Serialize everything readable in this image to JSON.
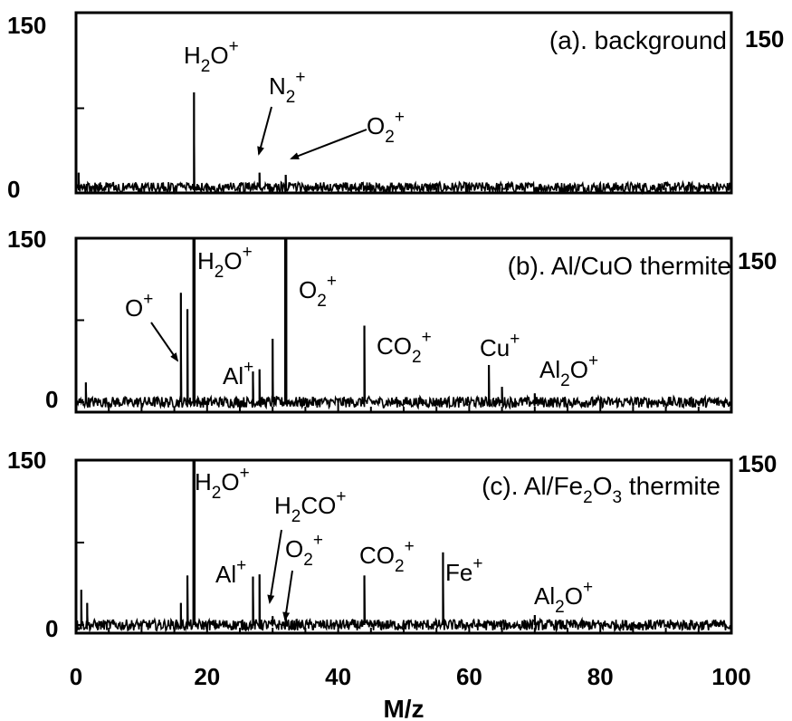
{
  "chart_data": {
    "type": "line",
    "shared_xaxis": {
      "xlabel": "M/z",
      "xlim": [
        0,
        100
      ],
      "tick_values": [
        0,
        20,
        40,
        60,
        80,
        100
      ],
      "tick_labels": [
        "0",
        "20",
        "40",
        "60",
        "80",
        "100"
      ]
    },
    "panels": [
      {
        "title": "(a). background",
        "ylim": [
          0,
          150
        ],
        "y_tick_labels": [
          "0",
          "150"
        ],
        "right_y_tick_label": "150",
        "baseline_noise": 5,
        "peaks": [
          {
            "x": 18,
            "y": 90
          },
          {
            "x": 28,
            "y": 14
          },
          {
            "x": 32,
            "y": 12
          },
          {
            "x": 0.4,
            "y": 14
          }
        ],
        "annotations": [
          {
            "parts": [
              [
                "H",
                "n"
              ],
              [
                "2",
                "sub"
              ],
              [
                "O",
                "n"
              ],
              [
                "+",
                "sup"
              ]
            ],
            "peak_x": 18,
            "arrow": false
          },
          {
            "parts": [
              [
                "N",
                "n"
              ],
              [
                "2",
                "sub"
              ],
              [
                "+",
                "sup"
              ]
            ],
            "peak_x": 28,
            "arrow": true
          },
          {
            "parts": [
              [
                "O",
                "n"
              ],
              [
                "2",
                "sub"
              ],
              [
                "+",
                "sup"
              ]
            ],
            "peak_x": 32,
            "arrow": true
          }
        ]
      },
      {
        "title": "(b). Al/CuO thermite",
        "ylim": [
          0,
          150
        ],
        "y_tick_labels": [
          "0",
          "150"
        ],
        "right_y_tick_label": "150",
        "baseline_noise": 5,
        "peaks": [
          {
            "x": 1.5,
            "y": 18
          },
          {
            "x": 16,
            "y": 100
          },
          {
            "x": 17,
            "y": 85
          },
          {
            "x": 18,
            "y": 150
          },
          {
            "x": 27,
            "y": 28
          },
          {
            "x": 28,
            "y": 30
          },
          {
            "x": 30,
            "y": 58
          },
          {
            "x": 32,
            "y": 150
          },
          {
            "x": 44,
            "y": 70
          },
          {
            "x": 63,
            "y": 34
          },
          {
            "x": 65,
            "y": 14
          },
          {
            "x": 70,
            "y": 8
          }
        ],
        "annotations": [
          {
            "parts": [
              [
                "H",
                "n"
              ],
              [
                "2",
                "sub"
              ],
              [
                "O",
                "n"
              ],
              [
                "+",
                "sup"
              ]
            ],
            "peak_x": 18,
            "arrow": false
          },
          {
            "parts": [
              [
                "O",
                "n"
              ],
              [
                "+",
                "sup"
              ]
            ],
            "peak_x": 16,
            "arrow": true
          },
          {
            "parts": [
              [
                "O",
                "n"
              ],
              [
                "2",
                "sub"
              ],
              [
                "+",
                "sup"
              ]
            ],
            "peak_x": 32,
            "arrow": false
          },
          {
            "parts": [
              [
                "Al",
                "n"
              ],
              [
                "+",
                "sup"
              ]
            ],
            "peak_x": 27,
            "arrow": false
          },
          {
            "parts": [
              [
                "CO",
                "n"
              ],
              [
                "2",
                "sub"
              ],
              [
                "+",
                "sup"
              ]
            ],
            "peak_x": 44,
            "arrow": false
          },
          {
            "parts": [
              [
                "Cu",
                "n"
              ],
              [
                "+",
                "sup"
              ]
            ],
            "peak_x": 63,
            "arrow": false
          },
          {
            "parts": [
              [
                "Al",
                "n"
              ],
              [
                "2",
                "sub"
              ],
              [
                "O",
                "n"
              ],
              [
                "+",
                "sup"
              ]
            ],
            "peak_x": 70,
            "arrow": false
          }
        ]
      },
      {
        "title_parts": [
          [
            "(c). Al/Fe",
            "n"
          ],
          [
            "2",
            "sub"
          ],
          [
            "O",
            "n"
          ],
          [
            "3",
            "sub"
          ],
          [
            " thermite",
            "n"
          ]
        ],
        "ylim": [
          0,
          150
        ],
        "y_tick_labels": [
          "0",
          "150"
        ],
        "right_y_tick_label": "150",
        "baseline_noise": 5,
        "peaks": [
          {
            "x": 0.8,
            "y": 32
          },
          {
            "x": 1.7,
            "y": 20
          },
          {
            "x": 16,
            "y": 20
          },
          {
            "x": 17,
            "y": 45
          },
          {
            "x": 18,
            "y": 150
          },
          {
            "x": 27,
            "y": 44
          },
          {
            "x": 28,
            "y": 46
          },
          {
            "x": 30,
            "y": 8
          },
          {
            "x": 32,
            "y": 12
          },
          {
            "x": 44,
            "y": 45
          },
          {
            "x": 56,
            "y": 66
          },
          {
            "x": 70,
            "y": 9
          }
        ],
        "annotations": [
          {
            "parts": [
              [
                "H",
                "n"
              ],
              [
                "2",
                "sub"
              ],
              [
                "O",
                "n"
              ],
              [
                "+",
                "sup"
              ]
            ],
            "peak_x": 18,
            "arrow": false
          },
          {
            "parts": [
              [
                "H",
                "n"
              ],
              [
                "2",
                "sub"
              ],
              [
                "CO",
                "n"
              ],
              [
                "+",
                "sup"
              ]
            ],
            "peak_x": 30,
            "arrow": true
          },
          {
            "parts": [
              [
                "O",
                "n"
              ],
              [
                "2",
                "sub"
              ],
              [
                "+",
                "sup"
              ]
            ],
            "peak_x": 32,
            "arrow": true
          },
          {
            "parts": [
              [
                "Al",
                "n"
              ],
              [
                "+",
                "sup"
              ]
            ],
            "peak_x": 27,
            "arrow": false
          },
          {
            "parts": [
              [
                "CO",
                "n"
              ],
              [
                "2",
                "sub"
              ],
              [
                "+",
                "sup"
              ]
            ],
            "peak_x": 44,
            "arrow": false
          },
          {
            "parts": [
              [
                "Fe",
                "n"
              ],
              [
                "+",
                "sup"
              ]
            ],
            "peak_x": 56,
            "arrow": false
          },
          {
            "parts": [
              [
                "Al",
                "n"
              ],
              [
                "2",
                "sub"
              ],
              [
                "O",
                "n"
              ],
              [
                "+",
                "sup"
              ]
            ],
            "peak_x": 70,
            "arrow": false
          }
        ]
      }
    ]
  }
}
